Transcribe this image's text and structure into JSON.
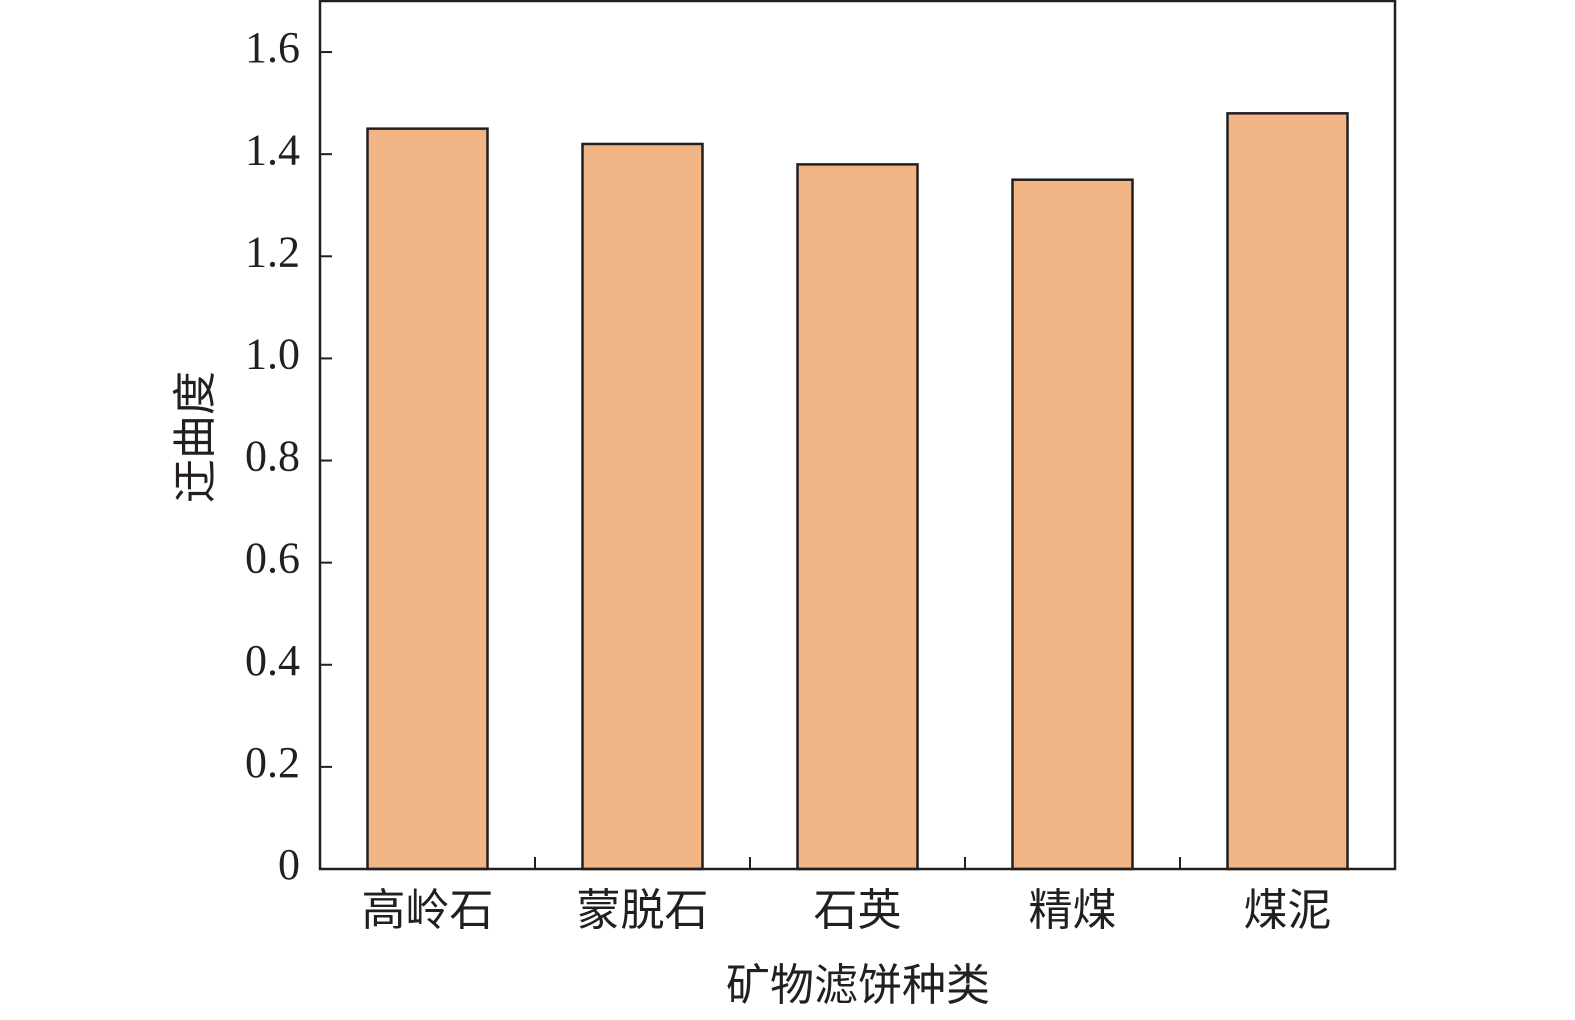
{
  "chart_data": {
    "type": "bar",
    "ylabel": "迂曲度",
    "xlabel": "矿物滤饼种类",
    "categories": [
      "高岭石",
      "蒙脱石",
      "石英",
      "精煤",
      "煤泥"
    ],
    "values": [
      1.45,
      1.42,
      1.38,
      1.35,
      1.48
    ],
    "color": "#f2b686",
    "ylim": [
      0,
      1.7
    ],
    "yticks": [
      0,
      0.2,
      0.4,
      0.6,
      0.8,
      {
        "value": 1,
        "label": "1.0"
      },
      1.2,
      1.4,
      1.6
    ]
  }
}
